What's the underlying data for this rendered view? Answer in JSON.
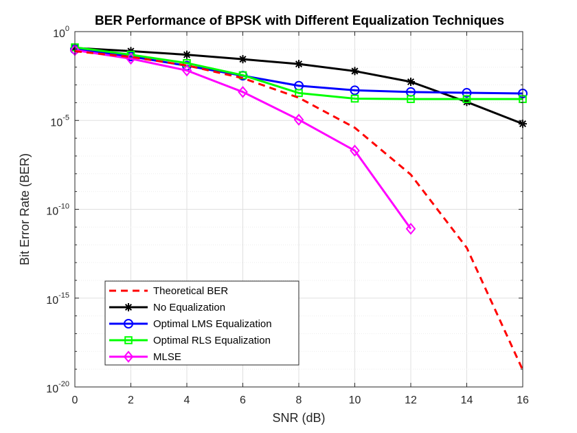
{
  "chart_data": {
    "type": "line",
    "title": "BER Performance of BPSK with Different Equalization Techniques",
    "xlabel": "SNR (dB)",
    "ylabel": "Bit Error Rate (BER)",
    "xlim": [
      0,
      16
    ],
    "ylim_exponent": [
      -20,
      0
    ],
    "yscale": "log",
    "grid": true,
    "x_ticks": [
      0,
      2,
      4,
      6,
      8,
      10,
      12,
      14,
      16
    ],
    "y_ticks": [
      {
        "base": "10",
        "exp": "0",
        "value_exp": 0
      },
      {
        "base": "10",
        "exp": "-5",
        "value_exp": -5
      },
      {
        "base": "10",
        "exp": "-10",
        "value_exp": -10
      },
      {
        "base": "10",
        "exp": "-15",
        "value_exp": -15
      },
      {
        "base": "10",
        "exp": "-20",
        "value_exp": -20
      }
    ],
    "legend_position": "bottom-left",
    "series": [
      {
        "name": "Theoretical BER",
        "color": "#ff0000",
        "line_style": "dashed",
        "marker": "none",
        "x": [
          0,
          2,
          4,
          6,
          8,
          10,
          12,
          14,
          16
        ],
        "y": [
          0.0786,
          0.0375,
          0.0125,
          0.0024,
          0.00019,
          3.9e-06,
          9e-09,
          6.8e-13,
          9e-20
        ]
      },
      {
        "name": "No Equalization",
        "color": "#000000",
        "line_style": "solid",
        "marker": "asterisk",
        "x": [
          0,
          2,
          4,
          6,
          8,
          10,
          12,
          14,
          16
        ],
        "y": [
          0.12,
          0.08,
          0.05,
          0.028,
          0.015,
          0.006,
          0.0015,
          0.00011,
          6.5e-06
        ]
      },
      {
        "name": "Optimal LMS Equalization",
        "color": "#0000ff",
        "line_style": "solid",
        "marker": "circle",
        "x": [
          0,
          2,
          4,
          6,
          8,
          10,
          12,
          14,
          16
        ],
        "y": [
          0.1,
          0.04,
          0.012,
          0.0033,
          0.0009,
          0.0005,
          0.0004,
          0.00036,
          0.00033
        ]
      },
      {
        "name": "Optimal RLS Equalization",
        "color": "#00ff00",
        "line_style": "solid",
        "marker": "square",
        "x": [
          0,
          2,
          4,
          6,
          8,
          10,
          12,
          14,
          16
        ],
        "y": [
          0.13,
          0.05,
          0.017,
          0.0035,
          0.00035,
          0.00017,
          0.00016,
          0.00016,
          0.00016
        ]
      },
      {
        "name": "MLSE",
        "color": "#ff00ff",
        "line_style": "solid",
        "marker": "diamond",
        "x": [
          0,
          2,
          4,
          6,
          8,
          10,
          12
        ],
        "y": [
          0.09,
          0.03,
          0.0065,
          0.0004,
          1.1e-05,
          2e-07,
          8e-12
        ]
      }
    ]
  }
}
